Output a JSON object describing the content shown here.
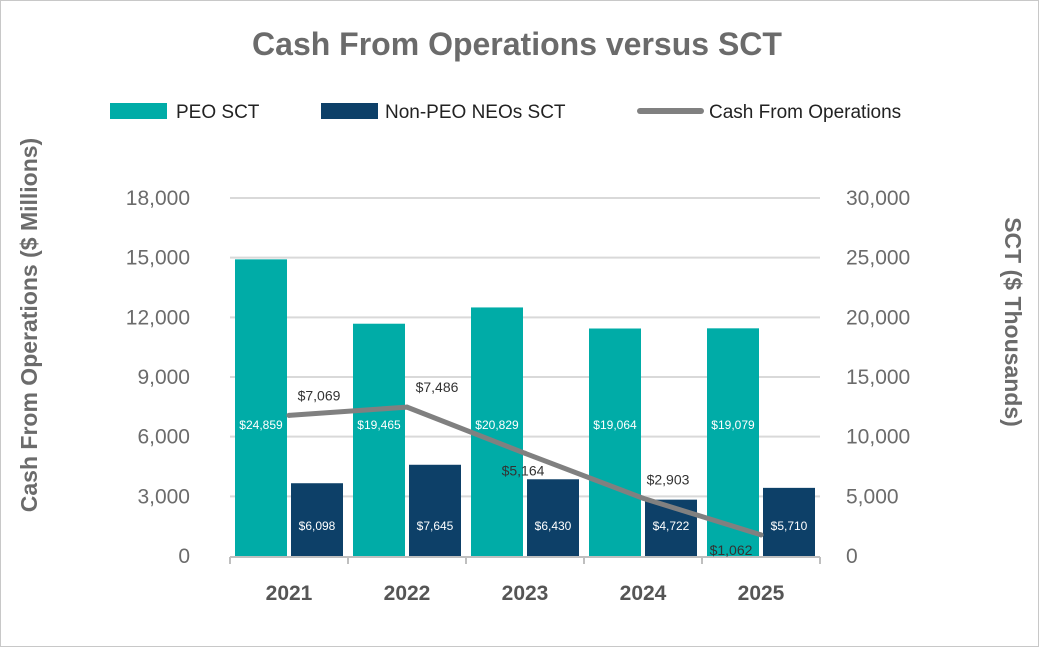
{
  "chart_data": {
    "type": "bar",
    "title": "Cash From Operations versus SCT",
    "categories": [
      "2021",
      "2022",
      "2023",
      "2024",
      "2025"
    ],
    "series": [
      {
        "name": "PEO SCT",
        "kind": "bar",
        "axis": "right",
        "color": "#00aca7",
        "values": [
          24859,
          19465,
          20829,
          19064,
          19079
        ],
        "labels": [
          "$24,859",
          "$19,465",
          "$20,829",
          "$19,064",
          "$19,079"
        ]
      },
      {
        "name": "Non-PEO NEOs SCT",
        "kind": "bar",
        "axis": "right",
        "color": "#0d4068",
        "values": [
          6098,
          7645,
          6430,
          4722,
          5710
        ],
        "labels": [
          "$6,098",
          "$7,645",
          "$6,430",
          "$4,722",
          "$5,710"
        ]
      },
      {
        "name": "Cash From Operations",
        "kind": "line",
        "axis": "left",
        "color": "#808080",
        "values": [
          7069,
          7486,
          5164,
          2903,
          1062
        ],
        "labels": [
          "$7,069",
          "$7,486",
          "$5,164",
          "$2,903",
          "$1,062"
        ]
      }
    ],
    "ylabel": "Cash From Operations ($ Millions)",
    "ylim": [
      0,
      18000
    ],
    "yticks": [
      "0",
      "3,000",
      "6,000",
      "9,000",
      "12,000",
      "15,000",
      "18,000"
    ],
    "y2label": "SCT ($ Thousands)",
    "y2lim": [
      0,
      30000
    ],
    "y2ticks": [
      "0",
      "5,000",
      "10,000",
      "15,000",
      "20,000",
      "25,000",
      "30,000"
    ],
    "legend": "top",
    "grid": true
  }
}
